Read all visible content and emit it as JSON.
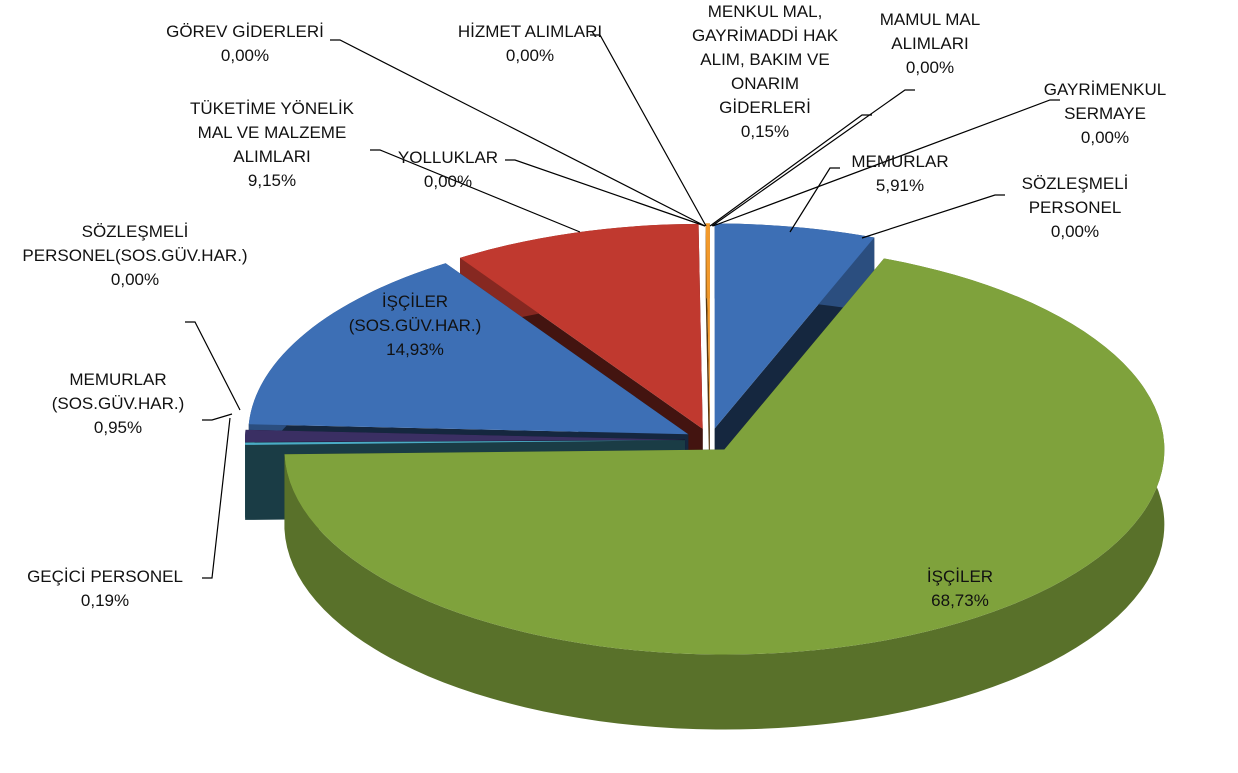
{
  "chart_data": {
    "type": "pie",
    "categories": [
      "MEMURLAR",
      "SÖZLEŞMELİ PERSONEL",
      "İŞÇİLER",
      "GEÇİCİ PERSONEL",
      "MEMURLAR (SOS.GÜV.HAR.)",
      "SÖZLEŞMELİ PERSONEL(SOS.GÜV.HAR.)",
      "İŞÇİLER (SOS.GÜV.HAR.)",
      "TÜKETİME YÖNELİK MAL VE MALZEME ALIMLARI",
      "YOLLUKLAR",
      "GÖREV GİDERLERİ",
      "HİZMET ALIMLARI",
      "MENKUL MAL, GAYRİMADDİ HAK ALIM, BAKIM VE ONARIM GİDERLERİ",
      "MAMUL MAL ALIMLARI",
      "GAYRİMENKUL SERMAYE"
    ],
    "values": [
      5.91,
      0.0,
      68.73,
      0.19,
      0.95,
      0.0,
      14.93,
      9.15,
      0.0,
      0.0,
      0.0,
      0.15,
      0.0,
      0.0
    ],
    "value_labels": [
      "5,91%",
      "0,00%",
      "68,73%",
      "0,19%",
      "0,95%",
      "0,00%",
      "14,93%",
      "9,15%",
      "0,00%",
      "0,00%",
      "0,00%",
      "0,15%",
      "0,00%",
      "0,00%"
    ],
    "colors": [
      "#3d6fb5",
      "#a8302e",
      "#7fa23c",
      "#4bacc6",
      "#3a2f63",
      "#6f4a8e",
      "#3d6fb5",
      "#c0392f",
      "#8064a2",
      "#4f81bd",
      "#9bbb59",
      "#f39a2b",
      "#2c4d75",
      "#772c2a"
    ]
  }
}
